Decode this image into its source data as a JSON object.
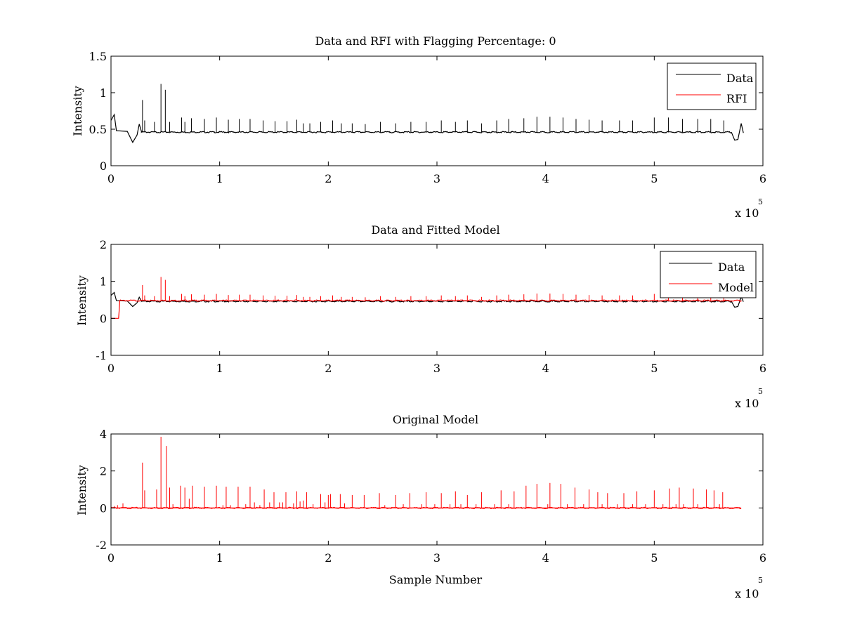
{
  "figure": {
    "background": "#ffffff"
  },
  "colors": {
    "data": "#000000",
    "rfi": "#ff0000",
    "model": "#ff0000",
    "axes": "#000000"
  },
  "chart_data": [
    {
      "type": "line",
      "title": "Data and RFI with Flagging Percentage: 0",
      "xlabel": "",
      "ylabel": "Intensity",
      "xlim": [
        0,
        600000
      ],
      "ylim": [
        0,
        1.5
      ],
      "xticks": [
        0,
        1,
        2,
        3,
        4,
        5,
        6
      ],
      "yticks": [
        0,
        0.5,
        1,
        1.5
      ],
      "xtick_labels": [
        "0",
        "1",
        "2",
        "3",
        "4",
        "5",
        "6"
      ],
      "ytick_labels": [
        "0",
        "0.5",
        "1",
        "1.5"
      ],
      "x_multiplier": {
        "base": "x 10",
        "exponent": "5"
      },
      "legend": {
        "position": "top-right",
        "entries": [
          "Data",
          "RFI"
        ]
      },
      "grid": false,
      "series": [
        {
          "name": "Data",
          "color": "#000000",
          "baseline": 0.46,
          "x_end": 580000,
          "segments": [
            [
              0,
              0.62
            ],
            [
              3000,
              0.7
            ],
            [
              5000,
              0.48
            ],
            [
              15000,
              0.47
            ],
            [
              18000,
              0.38
            ],
            [
              20000,
              0.32
            ],
            [
              24000,
              0.42
            ],
            [
              26000,
              0.57
            ],
            [
              28000,
              0.47
            ],
            [
              571000,
              0.46
            ],
            [
              574000,
              0.35
            ],
            [
              577000,
              0.36
            ],
            [
              580000,
              0.58
            ],
            [
              582000,
              0.45
            ]
          ],
          "spikes": [
            [
              29000,
              0.9
            ],
            [
              31000,
              0.62
            ],
            [
              40000,
              0.6
            ],
            [
              46000,
              1.12
            ],
            [
              50000,
              1.04
            ],
            [
              54000,
              0.6
            ],
            [
              65000,
              0.66
            ],
            [
              68000,
              0.6
            ],
            [
              74000,
              0.65
            ],
            [
              86000,
              0.64
            ],
            [
              97000,
              0.66
            ],
            [
              108000,
              0.63
            ],
            [
              118000,
              0.64
            ],
            [
              128000,
              0.64
            ],
            [
              140000,
              0.62
            ],
            [
              151000,
              0.61
            ],
            [
              162000,
              0.61
            ],
            [
              171000,
              0.63
            ],
            [
              177000,
              0.58
            ],
            [
              183000,
              0.58
            ],
            [
              193000,
              0.6
            ],
            [
              204000,
              0.62
            ],
            [
              212000,
              0.58
            ],
            [
              222000,
              0.58
            ],
            [
              234000,
              0.57
            ],
            [
              248000,
              0.6
            ],
            [
              262000,
              0.58
            ],
            [
              276000,
              0.6
            ],
            [
              290000,
              0.6
            ],
            [
              304000,
              0.62
            ],
            [
              317000,
              0.6
            ],
            [
              328000,
              0.62
            ],
            [
              341000,
              0.58
            ],
            [
              355000,
              0.62
            ],
            [
              366000,
              0.64
            ],
            [
              380000,
              0.65
            ],
            [
              392000,
              0.67
            ],
            [
              404000,
              0.67
            ],
            [
              416000,
              0.66
            ],
            [
              428000,
              0.64
            ],
            [
              440000,
              0.63
            ],
            [
              452000,
              0.62
            ],
            [
              468000,
              0.62
            ],
            [
              480000,
              0.62
            ],
            [
              500000,
              0.66
            ],
            [
              513000,
              0.66
            ],
            [
              526000,
              0.64
            ],
            [
              540000,
              0.64
            ],
            [
              552000,
              0.64
            ],
            [
              564000,
              0.62
            ]
          ]
        },
        {
          "name": "RFI",
          "color": "#ff0000",
          "baseline": 0.46,
          "x_end": 0,
          "segments": [],
          "spikes": []
        }
      ]
    },
    {
      "type": "line",
      "title": "Data and Fitted Model",
      "xlabel": "",
      "ylabel": "Intensity",
      "xlim": [
        0,
        600000
      ],
      "ylim": [
        -1,
        2
      ],
      "xticks": [
        0,
        1,
        2,
        3,
        4,
        5,
        6
      ],
      "yticks": [
        -1,
        0,
        1,
        2
      ],
      "xtick_labels": [
        "0",
        "1",
        "2",
        "3",
        "4",
        "5",
        "6"
      ],
      "ytick_labels": [
        "-1",
        "0",
        "1",
        "2"
      ],
      "x_multiplier": {
        "base": "x 10",
        "exponent": "5"
      },
      "legend": {
        "position": "top-right",
        "entries": [
          "Data",
          "Model"
        ]
      },
      "grid": false,
      "series": [
        {
          "name": "Data",
          "color": "#000000",
          "baseline": 0.46,
          "x_end": 580000,
          "segments": [
            [
              0,
              0.62
            ],
            [
              3000,
              0.7
            ],
            [
              5000,
              0.48
            ],
            [
              15000,
              0.47
            ],
            [
              18000,
              0.38
            ],
            [
              20000,
              0.32
            ],
            [
              24000,
              0.42
            ],
            [
              26000,
              0.57
            ],
            [
              28000,
              0.47
            ],
            [
              571000,
              0.46
            ],
            [
              574000,
              0.3
            ],
            [
              577000,
              0.32
            ],
            [
              580000,
              0.58
            ],
            [
              582000,
              0.45
            ]
          ],
          "spikes": []
        },
        {
          "name": "Model",
          "color": "#ff0000",
          "baseline": 0.48,
          "x_end": 580000,
          "segments": [
            [
              0,
              0.0
            ],
            [
              7000,
              0.0
            ],
            [
              7500,
              0.2
            ],
            [
              8000,
              0.46
            ],
            [
              580000,
              0.46
            ]
          ],
          "spikes": [
            [
              29000,
              0.9
            ],
            [
              31000,
              0.62
            ],
            [
              40000,
              0.6
            ],
            [
              46000,
              1.12
            ],
            [
              50000,
              1.04
            ],
            [
              54000,
              0.6
            ],
            [
              65000,
              0.66
            ],
            [
              68000,
              0.6
            ],
            [
              74000,
              0.65
            ],
            [
              86000,
              0.64
            ],
            [
              97000,
              0.66
            ],
            [
              108000,
              0.63
            ],
            [
              118000,
              0.64
            ],
            [
              128000,
              0.64
            ],
            [
              140000,
              0.62
            ],
            [
              151000,
              0.61
            ],
            [
              162000,
              0.61
            ],
            [
              171000,
              0.63
            ],
            [
              177000,
              0.58
            ],
            [
              183000,
              0.58
            ],
            [
              193000,
              0.6
            ],
            [
              204000,
              0.62
            ],
            [
              212000,
              0.58
            ],
            [
              222000,
              0.58
            ],
            [
              234000,
              0.57
            ],
            [
              248000,
              0.6
            ],
            [
              262000,
              0.58
            ],
            [
              276000,
              0.6
            ],
            [
              290000,
              0.6
            ],
            [
              304000,
              0.62
            ],
            [
              317000,
              0.6
            ],
            [
              328000,
              0.62
            ],
            [
              341000,
              0.58
            ],
            [
              355000,
              0.62
            ],
            [
              366000,
              0.64
            ],
            [
              380000,
              0.65
            ],
            [
              392000,
              0.67
            ],
            [
              404000,
              0.67
            ],
            [
              416000,
              0.66
            ],
            [
              428000,
              0.64
            ],
            [
              440000,
              0.63
            ],
            [
              452000,
              0.62
            ],
            [
              468000,
              0.62
            ],
            [
              480000,
              0.62
            ],
            [
              500000,
              0.66
            ],
            [
              513000,
              0.66
            ],
            [
              526000,
              0.64
            ],
            [
              540000,
              0.64
            ],
            [
              552000,
              0.64
            ],
            [
              564000,
              0.62
            ]
          ]
        }
      ]
    },
    {
      "type": "line",
      "title": "Original Model",
      "xlabel": "Sample Number",
      "ylabel": "Intensity",
      "xlim": [
        0,
        600000
      ],
      "ylim": [
        -2,
        4
      ],
      "xticks": [
        0,
        1,
        2,
        3,
        4,
        5,
        6
      ],
      "yticks": [
        -2,
        0,
        2,
        4
      ],
      "xtick_labels": [
        "0",
        "1",
        "2",
        "3",
        "4",
        "5",
        "6"
      ],
      "ytick_labels": [
        "-2",
        "0",
        "2",
        "4"
      ],
      "x_multiplier": {
        "base": "x 10",
        "exponent": "5"
      },
      "legend": null,
      "grid": false,
      "series": [
        {
          "name": "",
          "color": "#ff0000",
          "baseline": 0.0,
          "x_end": 580000,
          "segments": [],
          "spikes": [
            [
              3000,
              0.1
            ],
            [
              6000,
              0.15
            ],
            [
              11000,
              0.25
            ],
            [
              29000,
              2.45
            ],
            [
              31000,
              0.95
            ],
            [
              42000,
              1.0
            ],
            [
              46000,
              3.85
            ],
            [
              51000,
              3.35
            ],
            [
              54000,
              1.1
            ],
            [
              57000,
              0.2
            ],
            [
              64000,
              1.2
            ],
            [
              68000,
              1.1
            ],
            [
              72000,
              0.5
            ],
            [
              75000,
              1.2
            ],
            [
              86000,
              1.15
            ],
            [
              97000,
              1.2
            ],
            [
              103000,
              0.15
            ],
            [
              106000,
              1.15
            ],
            [
              110000,
              0.15
            ],
            [
              117000,
              1.15
            ],
            [
              124000,
              0.2
            ],
            [
              128000,
              1.15
            ],
            [
              132000,
              0.3
            ],
            [
              137000,
              0.15
            ],
            [
              141000,
              1.0
            ],
            [
              146000,
              0.3
            ],
            [
              150000,
              0.85
            ],
            [
              155000,
              0.3
            ],
            [
              158000,
              0.3
            ],
            [
              161000,
              0.85
            ],
            [
              168000,
              0.25
            ],
            [
              171000,
              0.9
            ],
            [
              174000,
              0.35
            ],
            [
              177000,
              0.4
            ],
            [
              180000,
              0.85
            ],
            [
              186000,
              0.2
            ],
            [
              193000,
              0.75
            ],
            [
              197000,
              0.3
            ],
            [
              200000,
              0.7
            ],
            [
              202000,
              0.75
            ],
            [
              211000,
              0.75
            ],
            [
              215000,
              0.25
            ],
            [
              222000,
              0.7
            ],
            [
              233000,
              0.7
            ],
            [
              247000,
              0.8
            ],
            [
              252000,
              0.15
            ],
            [
              262000,
              0.7
            ],
            [
              269000,
              0.2
            ],
            [
              275000,
              0.8
            ],
            [
              286000,
              0.2
            ],
            [
              290000,
              0.85
            ],
            [
              298000,
              0.2
            ],
            [
              304000,
              0.8
            ],
            [
              312000,
              0.2
            ],
            [
              317000,
              0.9
            ],
            [
              322000,
              0.2
            ],
            [
              328000,
              0.7
            ],
            [
              336000,
              0.2
            ],
            [
              341000,
              0.85
            ],
            [
              353000,
              0.2
            ],
            [
              359000,
              0.95
            ],
            [
              366000,
              0.2
            ],
            [
              371000,
              0.9
            ],
            [
              382000,
              1.2
            ],
            [
              392000,
              1.3
            ],
            [
              402000,
              0.2
            ],
            [
              404000,
              1.35
            ],
            [
              414000,
              1.3
            ],
            [
              420000,
              0.2
            ],
            [
              427000,
              1.1
            ],
            [
              435000,
              0.2
            ],
            [
              440000,
              1.0
            ],
            [
              448000,
              0.85
            ],
            [
              452000,
              0.2
            ],
            [
              457000,
              0.8
            ],
            [
              466000,
              0.2
            ],
            [
              472000,
              0.8
            ],
            [
              480000,
              0.2
            ],
            [
              484000,
              0.9
            ],
            [
              492000,
              0.2
            ],
            [
              500000,
              0.95
            ],
            [
              508000,
              0.2
            ],
            [
              514000,
              1.05
            ],
            [
              520000,
              0.2
            ],
            [
              523000,
              1.1
            ],
            [
              527000,
              0.2
            ],
            [
              536000,
              1.05
            ],
            [
              540000,
              0.2
            ],
            [
              548000,
              1.0
            ],
            [
              555000,
              0.95
            ],
            [
              560000,
              0.2
            ],
            [
              563000,
              0.85
            ]
          ]
        }
      ]
    }
  ]
}
